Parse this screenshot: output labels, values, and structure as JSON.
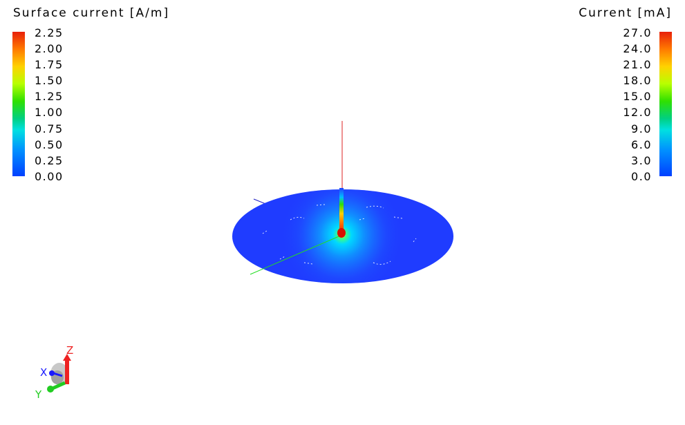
{
  "left_legend": {
    "title": "Surface current [A/m]",
    "ticks": [
      "2.25",
      "2.00",
      "1.75",
      "1.50",
      "1.25",
      "1.00",
      "0.75",
      "0.50",
      "0.25",
      "0.00"
    ],
    "max_color": "#e8200a",
    "min_color": "#0040ff"
  },
  "right_legend": {
    "title": "Current [mA]",
    "ticks": [
      "27.0",
      "24.0",
      "21.0",
      "18.0",
      "15.0",
      "12.0",
      "9.0",
      "6.0",
      "3.0",
      "0.0"
    ],
    "max_color": "#e8200a",
    "min_color": "#0040ff"
  },
  "scene": {
    "model": "monopole antenna over circular ground plane",
    "ground_plane_color": "#1f3cff",
    "antenna_color": "#e00000",
    "axis_colors": {
      "x": "#1f1fd0",
      "y": "#22dd22",
      "z": "#dd2222"
    }
  },
  "axes_triad": {
    "x_label": "X",
    "y_label": "Y",
    "z_label": "Z",
    "x_color": "#1a1aff",
    "y_color": "#22cc22",
    "z_color": "#ee2222"
  }
}
